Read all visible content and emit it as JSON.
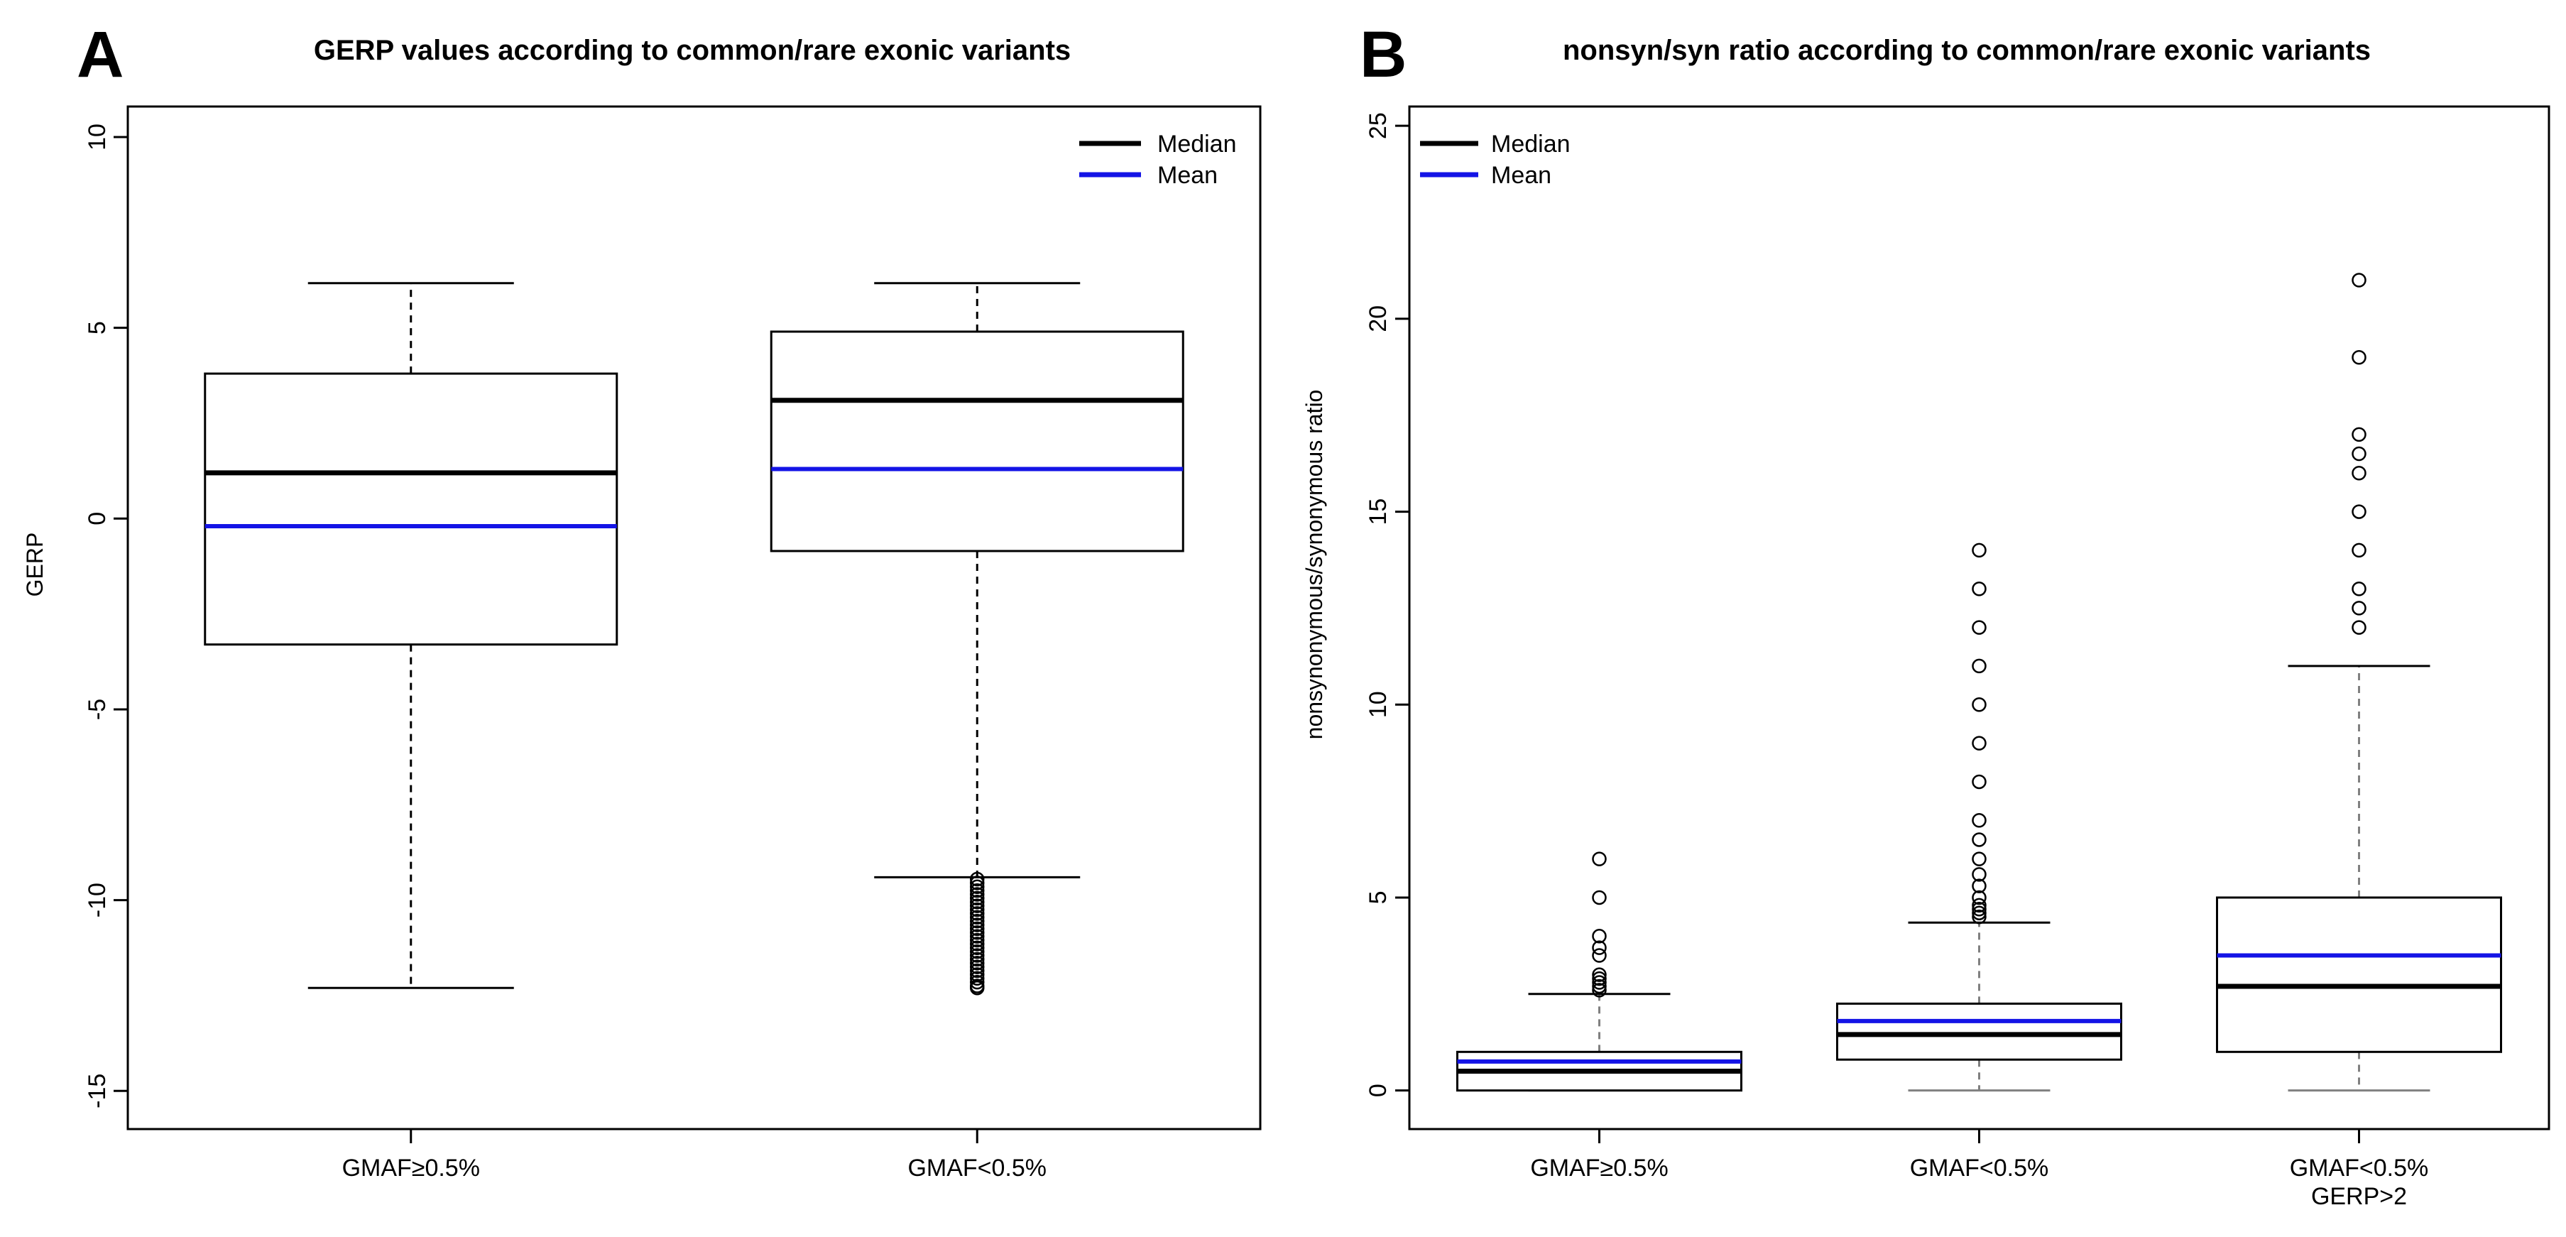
{
  "colors": {
    "median": "#000000",
    "mean": "#1414e6",
    "box": "#000000",
    "gray": "#808080"
  },
  "chart_data": [
    {
      "type": "boxplot",
      "panel": "A",
      "title": "GERP values according to common/rare exonic variants",
      "xlabel": "",
      "ylabel": "GERP",
      "ylim": [
        -16,
        10.8
      ],
      "yticks": [
        "-15",
        "-10",
        "-5",
        "0",
        "5",
        "10"
      ],
      "yticks_values": [
        -15,
        -10,
        -5,
        0,
        5,
        10
      ],
      "legend": {
        "position": "top-right",
        "entries": [
          {
            "label": "Median",
            "key": "median"
          },
          {
            "label": "Mean",
            "key": "mean"
          }
        ]
      },
      "categories": [
        {
          "label": [
            "GMAF≥0.5%"
          ],
          "whisker_low": -12.3,
          "q1": -3.3,
          "median": 1.2,
          "mean": -0.2,
          "q3": 3.8,
          "whisker_high": 6.17,
          "outliers": []
        },
        {
          "label": [
            "GMAF<0.5%"
          ],
          "whisker_low": -9.4,
          "q1": -0.85,
          "median": 3.1,
          "mean": 1.3,
          "q3": 4.9,
          "whisker_high": 6.17,
          "outliers": [
            -9.45,
            -9.55,
            -9.65,
            -9.75,
            -9.85,
            -9.95,
            -10.05,
            -10.15,
            -10.25,
            -10.35,
            -10.45,
            -10.55,
            -10.65,
            -10.75,
            -10.85,
            -10.95,
            -11.05,
            -11.15,
            -11.25,
            -11.35,
            -11.45,
            -11.55,
            -11.65,
            -11.75,
            -11.85,
            -11.95,
            -12.05,
            -12.15,
            -12.25,
            -12.3
          ]
        }
      ]
    },
    {
      "type": "boxplot",
      "panel": "B",
      "title": "nonsyn/syn ratio according to common/rare exonic variants",
      "xlabel": "",
      "ylabel": "nonsynonymous/synonymous ratio",
      "ylim": [
        -1,
        25.5
      ],
      "yticks": [
        "0",
        "5",
        "10",
        "15",
        "20",
        "25"
      ],
      "yticks_values": [
        0,
        5,
        10,
        15,
        20,
        25
      ],
      "legend": {
        "position": "top-left",
        "entries": [
          {
            "label": "Median",
            "key": "median"
          },
          {
            "label": "Mean",
            "key": "mean"
          }
        ]
      },
      "categories": [
        {
          "label": [
            "GMAF≥0.5%"
          ],
          "whisker_low": 0,
          "q1": 0,
          "median": 0.5,
          "mean": 0.75,
          "q3": 1.0,
          "whisker_high": 2.5,
          "outliers": [
            2.6,
            2.7,
            2.8,
            2.9,
            3.0,
            3.5,
            3.7,
            4.0,
            5.0,
            6.0
          ]
        },
        {
          "label": [
            "GMAF<0.5%"
          ],
          "whisker_low": 0,
          "q1": 0.8,
          "median": 1.45,
          "mean": 1.8,
          "q3": 2.25,
          "whisker_high": 4.35,
          "outliers": [
            4.5,
            4.6,
            4.7,
            4.8,
            5.0,
            5.3,
            5.6,
            6.0,
            6.5,
            7.0,
            8.0,
            9.0,
            10.0,
            11.0,
            12.0,
            13.0,
            14.0
          ]
        },
        {
          "label": [
            "GMAF<0.5%",
            "GERP>2"
          ],
          "whisker_low": 0,
          "q1": 1.0,
          "median": 2.7,
          "mean": 3.5,
          "q3": 5.0,
          "whisker_high": 11.0,
          "outliers": [
            12.0,
            12.5,
            13.0,
            14.0,
            15.0,
            16.0,
            16.5,
            17.0,
            19.0,
            21.0
          ]
        }
      ]
    }
  ]
}
